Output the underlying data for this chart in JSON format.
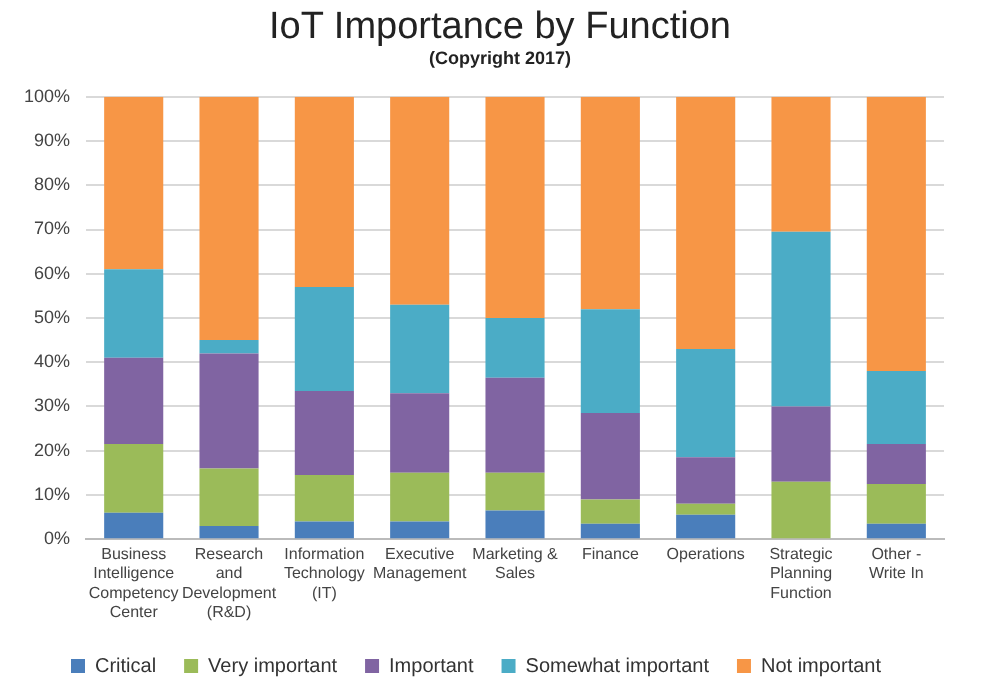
{
  "chart_data": {
    "type": "bar",
    "title": "IoT Importance by Function",
    "subtitle": "(Copyright 2017)",
    "categories": [
      "Business Intelligence Competency Center",
      "Research and Development (R&D)",
      "Information Technology (IT)",
      "Executive Management",
      "Marketing & Sales",
      "Finance",
      "Operations",
      "Strategic Planning Function",
      "Other - Write In"
    ],
    "stacked": true,
    "ylim": [
      0,
      100
    ],
    "yticks": [
      {
        "value": 0,
        "label": "0%"
      },
      {
        "value": 10,
        "label": "10%"
      },
      {
        "value": 20,
        "label": "20%"
      },
      {
        "value": 30,
        "label": "30%"
      },
      {
        "value": 40,
        "label": "40%"
      },
      {
        "value": 50,
        "label": "50%"
      },
      {
        "value": 60,
        "label": "60%"
      },
      {
        "value": 70,
        "label": "70%"
      },
      {
        "value": 80,
        "label": "80%"
      },
      {
        "value": 90,
        "label": "90%"
      },
      {
        "value": 100,
        "label": "100%"
      }
    ],
    "grid": "y",
    "legend": "bottom",
    "series": [
      {
        "name": "Critical",
        "color": "#4a7ebb",
        "values": [
          6,
          3,
          4,
          4,
          6.5,
          3.5,
          5.5,
          0,
          3.5
        ]
      },
      {
        "name": "Very important",
        "color": "#9bbb59",
        "values": [
          15.5,
          13,
          10.5,
          11,
          8.5,
          5.5,
          2.5,
          13,
          9
        ]
      },
      {
        "name": "Important",
        "color": "#8064a2",
        "values": [
          19.5,
          26,
          19,
          18,
          21.5,
          19.5,
          10.5,
          17,
          9
        ]
      },
      {
        "name": "Somewhat important",
        "color": "#4bacc6",
        "values": [
          20,
          3,
          23.5,
          20,
          13.5,
          23.5,
          24.5,
          39.5,
          16.5
        ]
      },
      {
        "name": "Not important",
        "color": "#f79646",
        "values": [
          39,
          55,
          43,
          47,
          50,
          48,
          57,
          30.5,
          62
        ]
      }
    ]
  }
}
